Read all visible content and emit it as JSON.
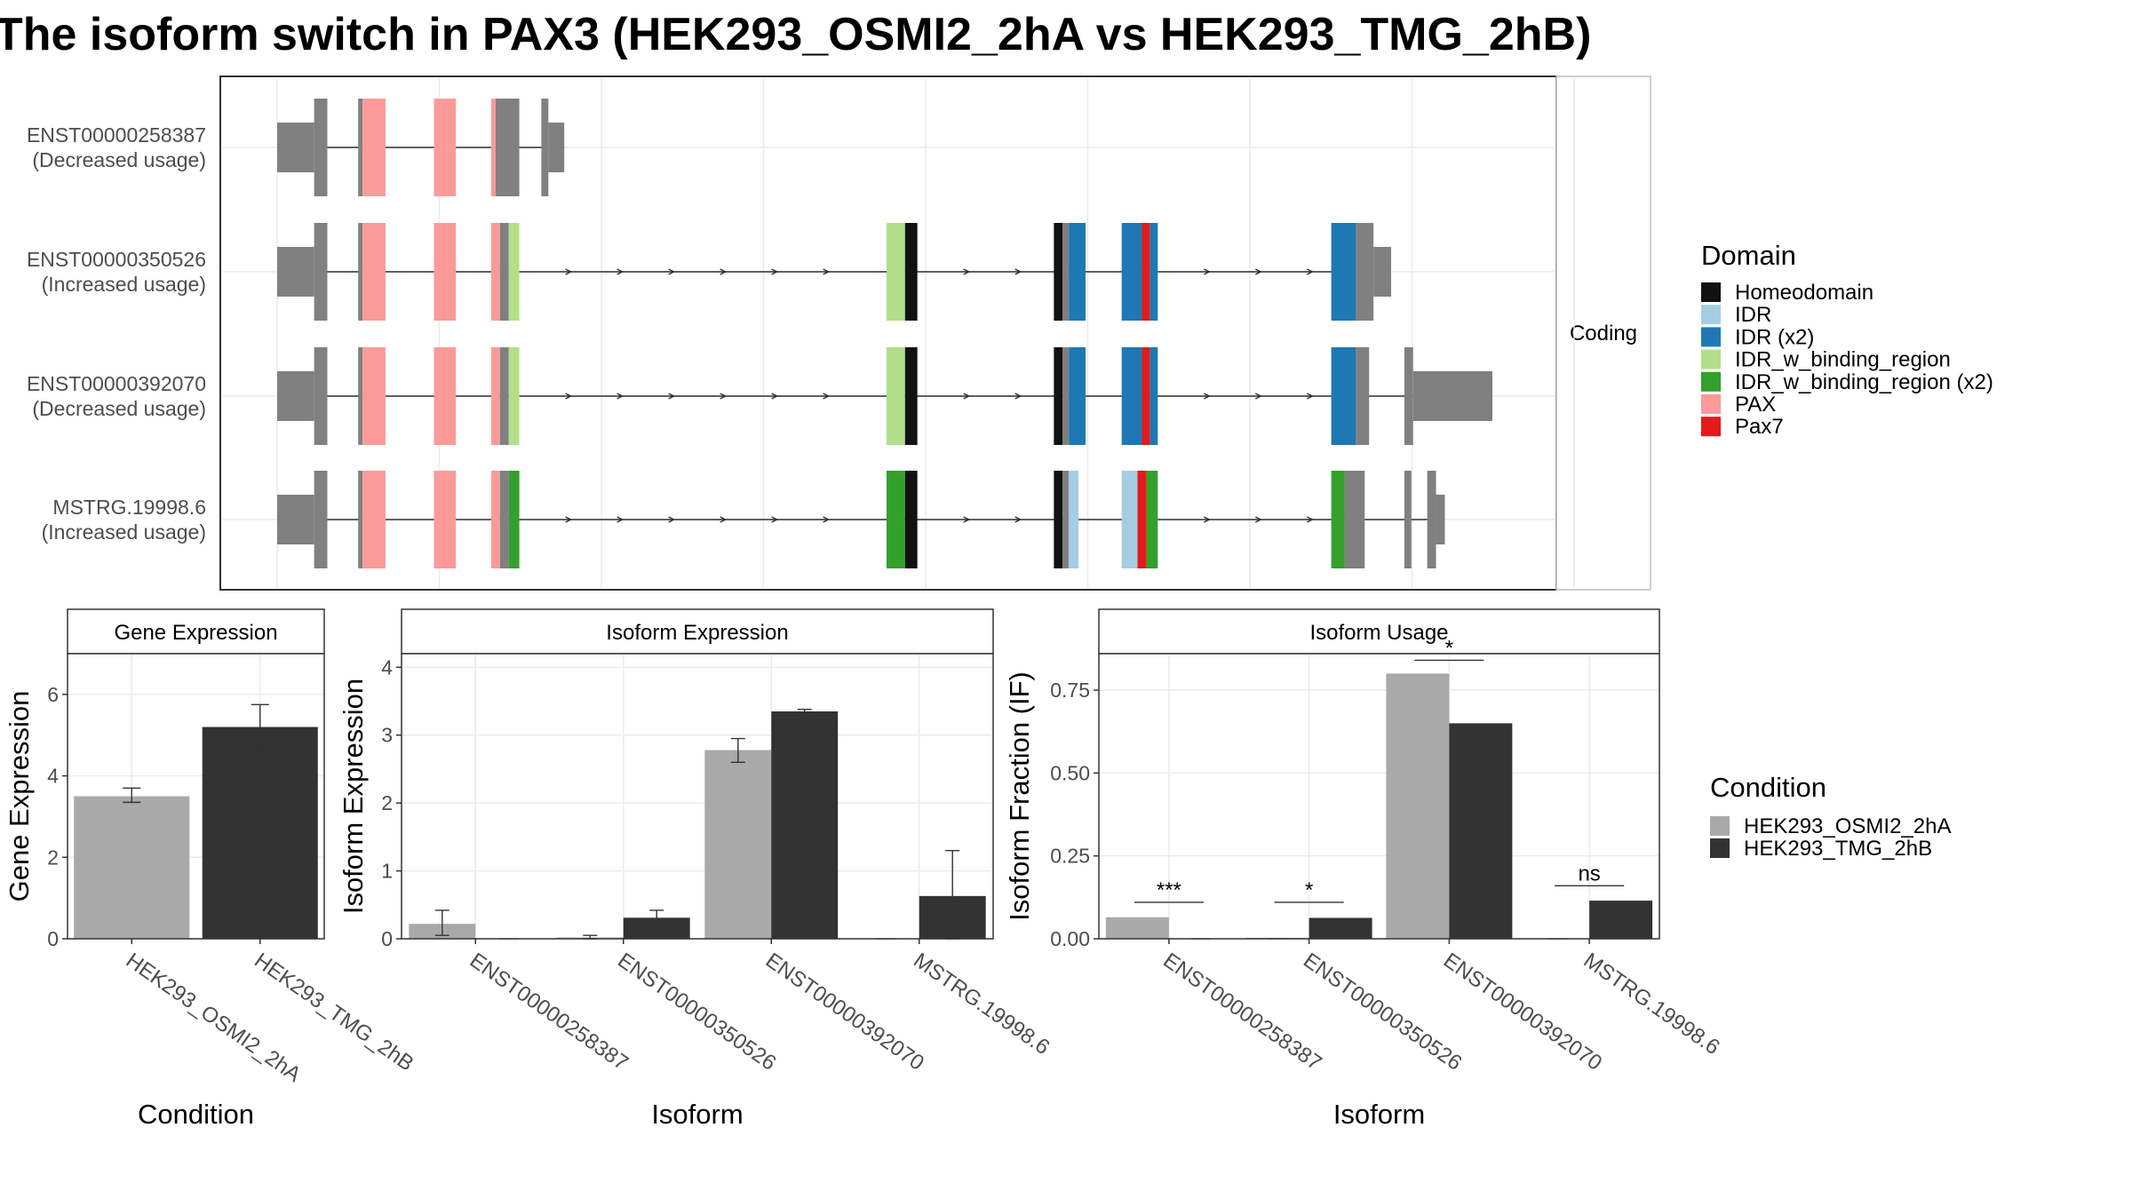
{
  "title": "The isoform switch in PAX3 (HEK293_OSMI2_2hA vs HEK293_TMG_2hB)",
  "colors": {
    "intron": "#2f2f2f",
    "exon": "#808080",
    "osmi": "#a9a9a9",
    "tmg": "#333333",
    "grid": "#ebebeb",
    "Homeodomain": "#111111",
    "IDR": "#a6cee3",
    "IDR (x2)": "#1f78b4",
    "IDR_w_binding_region": "#b2df8a",
    "IDR_w_binding_region (x2)": "#33a02c",
    "PAX": "#fb9a99",
    "Pax7": "#e31a1c"
  },
  "strip_label": "Coding",
  "domain_legend": {
    "title": "Domain",
    "items": [
      "Homeodomain",
      "IDR",
      "IDR (x2)",
      "IDR_w_binding_region",
      "IDR_w_binding_region (x2)",
      "PAX",
      "Pax7"
    ]
  },
  "condition_legend": {
    "title": "Condition",
    "items": [
      "HEK293_OSMI2_2hA",
      "HEK293_TMG_2hB"
    ]
  },
  "transcripts": [
    {
      "id": "ENST00000258387",
      "note": "(Decreased usage)",
      "blocks": [
        [
          0.0,
          4.2,
          "exon",
          "utr"
        ],
        [
          4.2,
          5.7,
          "exon",
          "cds"
        ],
        [
          9.2,
          9.7,
          "exon",
          "cds"
        ],
        [
          9.7,
          12.3,
          "PAX",
          "cds"
        ],
        [
          17.8,
          20.3,
          "PAX",
          "cds"
        ],
        [
          24.3,
          24.8,
          "PAX",
          "cds"
        ],
        [
          24.8,
          27.5,
          "exon",
          "cds"
        ],
        [
          30.0,
          30.8,
          "exon",
          "cds"
        ],
        [
          30.8,
          32.6,
          "exon",
          "utr"
        ]
      ]
    },
    {
      "id": "ENST00000350526",
      "note": "(Increased usage)",
      "blocks": [
        [
          0.0,
          4.2,
          "exon",
          "utr"
        ],
        [
          4.2,
          5.7,
          "exon",
          "cds"
        ],
        [
          9.2,
          9.7,
          "exon",
          "cds"
        ],
        [
          9.7,
          12.3,
          "PAX",
          "cds"
        ],
        [
          17.8,
          20.3,
          "PAX",
          "cds"
        ],
        [
          24.3,
          25.3,
          "PAX",
          "cds"
        ],
        [
          25.3,
          26.3,
          "exon",
          "cds"
        ],
        [
          26.3,
          27.5,
          "IDR_w_binding_region",
          "cds"
        ],
        [
          69.2,
          71.3,
          "IDR_w_binding_region",
          "cds"
        ],
        [
          71.3,
          72.7,
          "Homeodomain",
          "cds"
        ],
        [
          88.2,
          89.2,
          "Homeodomain",
          "cds"
        ],
        [
          89.2,
          89.9,
          "exon",
          "cds"
        ],
        [
          89.9,
          91.8,
          "IDR (x2)",
          "cds"
        ],
        [
          95.9,
          98.2,
          "IDR (x2)",
          "cds"
        ],
        [
          98.2,
          99.1,
          "Pax7",
          "cds"
        ],
        [
          99.1,
          100.0,
          "IDR (x2)",
          "cds"
        ],
        [
          119.7,
          122.5,
          "IDR (x2)",
          "cds"
        ],
        [
          122.5,
          124.5,
          "exon",
          "cds"
        ],
        [
          124.5,
          126.5,
          "exon",
          "utr"
        ]
      ]
    },
    {
      "id": "ENST00000392070",
      "note": "(Decreased usage)",
      "blocks": [
        [
          0.0,
          4.2,
          "exon",
          "utr"
        ],
        [
          4.2,
          5.7,
          "exon",
          "cds"
        ],
        [
          9.2,
          9.7,
          "exon",
          "cds"
        ],
        [
          9.7,
          12.3,
          "PAX",
          "cds"
        ],
        [
          17.8,
          20.3,
          "PAX",
          "cds"
        ],
        [
          24.3,
          25.3,
          "PAX",
          "cds"
        ],
        [
          25.3,
          26.3,
          "exon",
          "cds"
        ],
        [
          26.3,
          27.5,
          "IDR_w_binding_region",
          "cds"
        ],
        [
          69.2,
          71.3,
          "IDR_w_binding_region",
          "cds"
        ],
        [
          71.3,
          72.7,
          "Homeodomain",
          "cds"
        ],
        [
          88.2,
          89.2,
          "Homeodomain",
          "cds"
        ],
        [
          89.2,
          89.9,
          "exon",
          "cds"
        ],
        [
          89.9,
          91.8,
          "IDR (x2)",
          "cds"
        ],
        [
          95.9,
          98.2,
          "IDR (x2)",
          "cds"
        ],
        [
          98.2,
          99.1,
          "Pax7",
          "cds"
        ],
        [
          99.1,
          100.0,
          "IDR (x2)",
          "cds"
        ],
        [
          119.7,
          122.5,
          "IDR (x2)",
          "cds"
        ],
        [
          122.5,
          124.0,
          "exon",
          "cds"
        ],
        [
          128.0,
          129.0,
          "exon",
          "cds"
        ],
        [
          129.0,
          138.0,
          "exon",
          "utr"
        ]
      ]
    },
    {
      "id": "MSTRG.19998.6",
      "note": "(Increased usage)",
      "blocks": [
        [
          0.0,
          4.2,
          "exon",
          "utr"
        ],
        [
          4.2,
          5.7,
          "exon",
          "cds"
        ],
        [
          9.2,
          9.7,
          "exon",
          "cds"
        ],
        [
          9.7,
          12.3,
          "PAX",
          "cds"
        ],
        [
          17.8,
          20.3,
          "PAX",
          "cds"
        ],
        [
          24.3,
          25.3,
          "PAX",
          "cds"
        ],
        [
          25.3,
          26.3,
          "exon",
          "cds"
        ],
        [
          26.3,
          27.5,
          "IDR_w_binding_region (x2)",
          "cds"
        ],
        [
          69.2,
          71.3,
          "IDR_w_binding_region (x2)",
          "cds"
        ],
        [
          71.3,
          72.7,
          "Homeodomain",
          "cds"
        ],
        [
          88.2,
          89.2,
          "Homeodomain",
          "cds"
        ],
        [
          89.2,
          89.9,
          "exon",
          "cds"
        ],
        [
          89.9,
          91.0,
          "IDR",
          "cds"
        ],
        [
          95.9,
          97.7,
          "IDR",
          "cds"
        ],
        [
          97.7,
          98.7,
          "Pax7",
          "cds"
        ],
        [
          98.7,
          100.0,
          "IDR_w_binding_region (x2)",
          "cds"
        ],
        [
          119.7,
          121.2,
          "IDR_w_binding_region (x2)",
          "cds"
        ],
        [
          121.2,
          123.5,
          "exon",
          "cds"
        ],
        [
          128.0,
          128.8,
          "exon",
          "cds"
        ],
        [
          130.6,
          131.6,
          "exon",
          "cds"
        ],
        [
          131.6,
          132.6,
          "exon",
          "utr"
        ]
      ]
    }
  ],
  "chart_data": [
    {
      "type": "bar",
      "title": "Gene Expression",
      "xlabel": "Condition",
      "ylabel": "Gene Expression",
      "categories": [
        "HEK293_OSMI2_2hA",
        "HEK293_TMG_2hB"
      ],
      "values": [
        3.5,
        5.2
      ],
      "errors": [
        [
          3.35,
          3.7
        ],
        [
          4.7,
          5.75
        ]
      ],
      "yticks": [
        "0",
        "2",
        "4",
        "6"
      ],
      "ylim": [
        0,
        7
      ]
    },
    {
      "type": "bar",
      "title": "Isoform Expression",
      "xlabel": "Isoform",
      "ylabel": "Isoform Expression",
      "categories": [
        "ENST00000258387",
        "ENST00000350526",
        "ENST00000392070",
        "MSTRG.19998.6"
      ],
      "series": [
        {
          "name": "HEK293_OSMI2_2hA",
          "values": [
            0.22,
            0.02,
            2.78,
            0.0
          ],
          "errors": [
            [
              0.05,
              0.42
            ],
            [
              0.0,
              0.05
            ],
            [
              2.6,
              2.95
            ],
            [
              0.0,
              0.0
            ]
          ]
        },
        {
          "name": "HEK293_TMG_2hB",
          "values": [
            0.0,
            0.31,
            3.35,
            0.63
          ],
          "errors": [
            [
              0.0,
              0.0
            ],
            [
              0.22,
              0.42
            ],
            [
              3.3,
              3.38
            ],
            [
              0.0,
              1.3
            ]
          ]
        }
      ],
      "yticks": [
        "0",
        "1",
        "2",
        "3",
        "4"
      ],
      "ylim": [
        0,
        4.2
      ]
    },
    {
      "type": "bar",
      "title": "Isoform Usage",
      "xlabel": "Isoform",
      "ylabel": "Isoform Fraction (IF)",
      "categories": [
        "ENST00000258387",
        "ENST00000350526",
        "ENST00000392070",
        "MSTRG.19998.6"
      ],
      "series": [
        {
          "name": "HEK293_OSMI2_2hA",
          "values": [
            0.065,
            0.003,
            0.8,
            0.0
          ]
        },
        {
          "name": "HEK293_TMG_2hB",
          "values": [
            0.0,
            0.063,
            0.65,
            0.115
          ]
        }
      ],
      "significance": [
        "***",
        "*",
        "*",
        "ns"
      ],
      "sig_heights": [
        0.11,
        0.11,
        0.84,
        0.16
      ],
      "yticks": [
        "0.00",
        "0.25",
        "0.50",
        "0.75"
      ],
      "ylim": [
        0,
        0.86
      ]
    }
  ]
}
